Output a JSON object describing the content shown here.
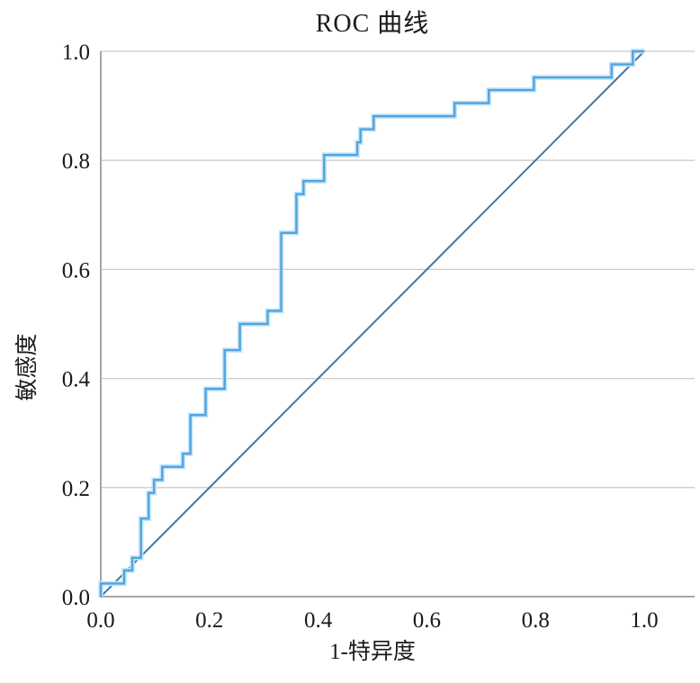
{
  "page": {
    "background": "#ffffff"
  },
  "chart_data": {
    "type": "line",
    "title": "ROC 曲线",
    "xlabel": "1-特异度",
    "ylabel": "敏感度",
    "xlim": [
      0,
      1
    ],
    "ylim": [
      0,
      1
    ],
    "xticks": [
      "0.0",
      "0.2",
      "0.4",
      "0.6",
      "0.8",
      "1.0"
    ],
    "yticks": [
      "0.0",
      "0.2",
      "0.4",
      "0.6",
      "0.8",
      "1.0"
    ],
    "grid": "horizontal",
    "legend": "none",
    "colors": {
      "text": "#1a1a1a",
      "spine": "#a6a6a6",
      "gridline": "#cbcbcb",
      "roc_curve": "#4fa5e0",
      "roc_curve_halo": "#c3e3f8",
      "reference_line": "#3f77a3"
    },
    "series": [
      {
        "name": "ROC curve (sensitivity vs 1-specificity)",
        "style": "step",
        "color": "#4fa5e0",
        "points": [
          [
            0.0,
            0.0
          ],
          [
            0.0,
            0.024
          ],
          [
            0.043,
            0.024
          ],
          [
            0.043,
            0.048
          ],
          [
            0.058,
            0.048
          ],
          [
            0.058,
            0.071
          ],
          [
            0.074,
            0.071
          ],
          [
            0.074,
            0.143
          ],
          [
            0.088,
            0.143
          ],
          [
            0.088,
            0.19
          ],
          [
            0.098,
            0.19
          ],
          [
            0.098,
            0.214
          ],
          [
            0.113,
            0.214
          ],
          [
            0.113,
            0.238
          ],
          [
            0.151,
            0.238
          ],
          [
            0.151,
            0.262
          ],
          [
            0.165,
            0.262
          ],
          [
            0.165,
            0.333
          ],
          [
            0.193,
            0.333
          ],
          [
            0.193,
            0.381
          ],
          [
            0.228,
            0.381
          ],
          [
            0.228,
            0.452
          ],
          [
            0.256,
            0.452
          ],
          [
            0.256,
            0.5
          ],
          [
            0.307,
            0.5
          ],
          [
            0.307,
            0.524
          ],
          [
            0.332,
            0.524
          ],
          [
            0.332,
            0.667
          ],
          [
            0.36,
            0.667
          ],
          [
            0.36,
            0.738
          ],
          [
            0.373,
            0.738
          ],
          [
            0.373,
            0.762
          ],
          [
            0.411,
            0.762
          ],
          [
            0.411,
            0.81
          ],
          [
            0.472,
            0.81
          ],
          [
            0.472,
            0.833
          ],
          [
            0.478,
            0.833
          ],
          [
            0.478,
            0.857
          ],
          [
            0.502,
            0.857
          ],
          [
            0.502,
            0.881
          ],
          [
            0.651,
            0.881
          ],
          [
            0.651,
            0.905
          ],
          [
            0.714,
            0.905
          ],
          [
            0.714,
            0.929
          ],
          [
            0.797,
            0.929
          ],
          [
            0.797,
            0.952
          ],
          [
            0.94,
            0.952
          ],
          [
            0.94,
            0.976
          ],
          [
            0.979,
            0.976
          ],
          [
            0.979,
            1.0
          ],
          [
            1.0,
            1.0
          ]
        ]
      },
      {
        "name": "reference diagonal (chance line)",
        "style": "line",
        "color": "#3f77a3",
        "points": [
          [
            0.0,
            0.0
          ],
          [
            1.0,
            1.0
          ]
        ]
      }
    ]
  }
}
